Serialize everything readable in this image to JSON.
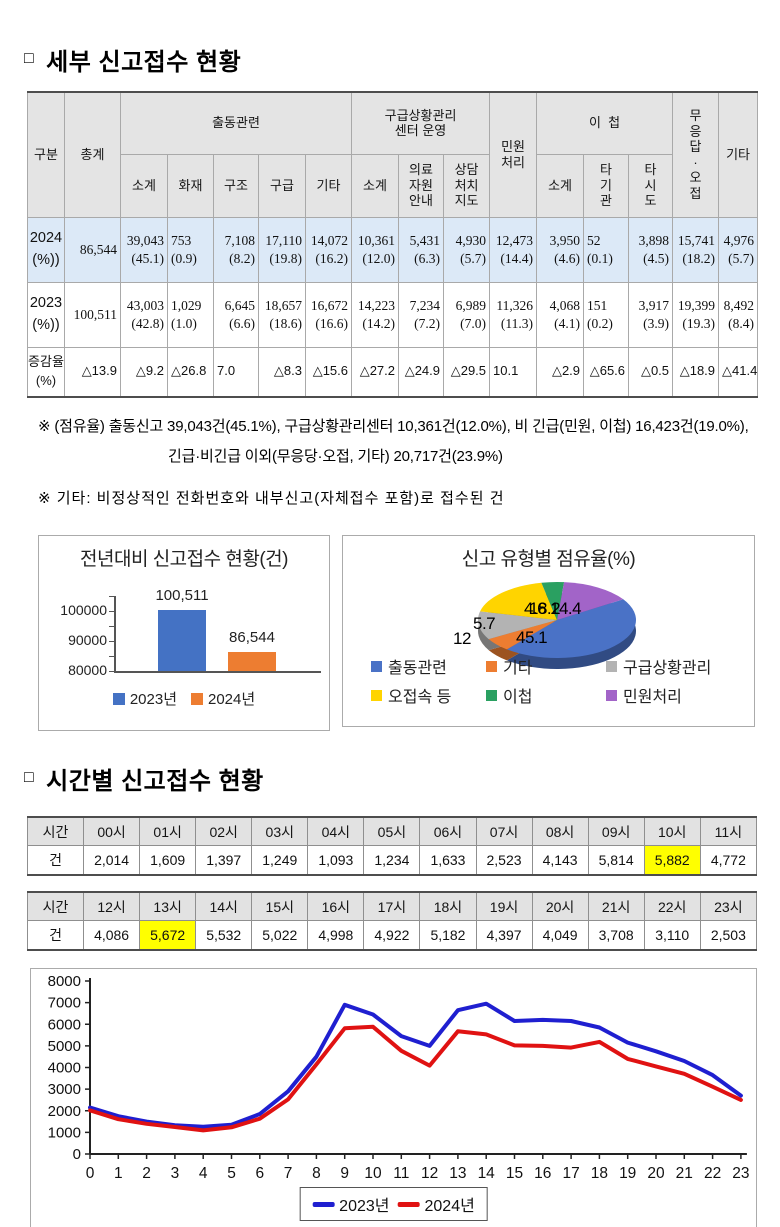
{
  "section1": {
    "bullet": "□",
    "title": "세부 신고접수 현황",
    "detail_table": {
      "h_gubun": "구분",
      "h_total": "총계",
      "h_dispatch": "출동관련",
      "h_dispatch_cols": [
        "소계",
        "화재",
        "구조",
        "구급",
        "기타"
      ],
      "h_ems": "구급상황관리\n센터 운영",
      "h_ems_cols": [
        "소계",
        "의료\n자원\n안내",
        "상담\n처치\n지도"
      ],
      "h_minwon": "민원\n처리",
      "h_transfer": "이  첩",
      "h_transfer_cols": [
        "소계",
        "타\n기\n관",
        "타\n시\n도"
      ],
      "h_noanswer": "무\n응\n답\n·\n오\n접",
      "h_etc": "기타",
      "rows": [
        {
          "label": "2024\n(%))",
          "style": "blue",
          "cells": [
            {
              "v": "86,544"
            },
            {
              "v": "39,043",
              "p": "(45.1)"
            },
            {
              "v": "753",
              "p": "(0.9)",
              "align": "left"
            },
            {
              "v": "7,108",
              "p": "(8.2)"
            },
            {
              "v": "17,110",
              "p": "(19.8)"
            },
            {
              "v": "14,072",
              "p": "(16.2)"
            },
            {
              "v": "10,361",
              "p": "(12.0)"
            },
            {
              "v": "5,431",
              "p": "(6.3)"
            },
            {
              "v": "4,930",
              "p": "(5.7)"
            },
            {
              "v": "12,473",
              "p": "(14.4)"
            },
            {
              "v": "3,950",
              "p": "(4.6)"
            },
            {
              "v": "52",
              "p": "(0.1)",
              "align": "left"
            },
            {
              "v": "3,898",
              "p": "(4.5)"
            },
            {
              "v": "15,741",
              "p": "(18.2)"
            },
            {
              "v": "4,976",
              "p": "(5.7)"
            }
          ]
        },
        {
          "label": "2023\n(%))",
          "style": "white",
          "cells": [
            {
              "v": "100,511"
            },
            {
              "v": "43,003",
              "p": "(42.8)"
            },
            {
              "v": "1,029",
              "p": "(1.0)",
              "align": "left"
            },
            {
              "v": "6,645",
              "p": "(6.6)"
            },
            {
              "v": "18,657",
              "p": "(18.6)"
            },
            {
              "v": "16,672",
              "p": "(16.6)"
            },
            {
              "v": "14,223",
              "p": "(14.2)"
            },
            {
              "v": "7,234",
              "p": "(7.2)"
            },
            {
              "v": "6,989",
              "p": "(7.0)"
            },
            {
              "v": "11,326",
              "p": "(11.3)"
            },
            {
              "v": "4,068",
              "p": "(4.1)"
            },
            {
              "v": "151",
              "p": "(0.2)",
              "align": "left"
            },
            {
              "v": "3,917",
              "p": "(3.9)"
            },
            {
              "v": "19,399",
              "p": "(19.3)"
            },
            {
              "v": "8,492",
              "p": "(8.4)"
            }
          ]
        },
        {
          "label": "증감율\n(%)",
          "style": "growth",
          "cells": [
            {
              "v": "△13.9"
            },
            {
              "v": "△9.2"
            },
            {
              "v": "△26.8",
              "align": "left"
            },
            {
              "v": "7.0",
              "align": "left"
            },
            {
              "v": "△8.3"
            },
            {
              "v": "△15.6"
            },
            {
              "v": "△27.2"
            },
            {
              "v": "△24.9"
            },
            {
              "v": "△29.5"
            },
            {
              "v": "10.1",
              "align": "left"
            },
            {
              "v": "△2.9"
            },
            {
              "v": "△65.6"
            },
            {
              "v": "△0.5"
            },
            {
              "v": "△18.9"
            },
            {
              "v": "△41.4"
            }
          ]
        }
      ]
    },
    "footnotes": {
      "note1_line1": "※ (점유율) 출동신고 39,043건(45.1%), 구급상황관리센터 10,361건(12.0%), 비 긴급(민원, 이첩) 16,423건(19.0%),",
      "note1_line2": "긴급·비긴급 이외(무응당·오접, 기타) 20,717건(23.9%)",
      "note2": "※ 기타: 비정상적인 전화번호와 내부신고(자체접수 포함)로 접수된 건"
    }
  },
  "section2": {
    "bullet": "□",
    "title": "시간별 신고접수 현황",
    "hourly": {
      "row_label_time": "시간",
      "row_label_count": "건",
      "tables": [
        {
          "hours": [
            "00시",
            "01시",
            "02시",
            "03시",
            "04시",
            "05시",
            "06시",
            "07시",
            "08시",
            "09시",
            "10시",
            "11시"
          ],
          "values": [
            "2,014",
            "1,609",
            "1,397",
            "1,249",
            "1,093",
            "1,234",
            "1,633",
            "2,523",
            "4,143",
            "5,814",
            "5,882",
            "4,772"
          ],
          "highlight": 10
        },
        {
          "hours": [
            "12시",
            "13시",
            "14시",
            "15시",
            "16시",
            "17시",
            "18시",
            "19시",
            "20시",
            "21시",
            "22시",
            "23시"
          ],
          "values": [
            "4,086",
            "5,672",
            "5,532",
            "5,022",
            "4,998",
            "4,922",
            "5,182",
            "4,397",
            "4,049",
            "3,708",
            "3,110",
            "2,503"
          ],
          "highlight": 1
        }
      ]
    }
  },
  "chart_data": [
    {
      "type": "bar",
      "title": "전년대비 신고접수 현황(건)",
      "categories": [
        "2023년",
        "2024년"
      ],
      "values": [
        100511,
        86544
      ],
      "value_labels": [
        "100,511",
        "86,544"
      ],
      "colors": [
        "#4472c4",
        "#ed7d31"
      ],
      "ylim": [
        80000,
        105000
      ],
      "yticks": [
        80000,
        90000,
        100000
      ],
      "legend": [
        "2023년",
        "2024년"
      ],
      "legend_position": "bottom"
    },
    {
      "type": "pie",
      "title": "신고 유형별 점유율(%)",
      "labels": [
        "출동관련",
        "기타",
        "구급상황관리",
        "오접속 등",
        "이첩",
        "민원처리"
      ],
      "values": [
        45.1,
        5.7,
        12,
        18.2,
        4.6,
        14.4
      ],
      "colors": [
        "#4a72c6",
        "#ed7d31",
        "#b3b3b3",
        "#ffd400",
        "#2aa061",
        "#a264c8"
      ],
      "start_angle_deg": 57,
      "visible_value_labels": [
        "45.1",
        "12",
        "5.7",
        "4.6",
        "18.2",
        "14.4"
      ],
      "legend_rows": [
        [
          "출동관련",
          "기타",
          "구급상황관리"
        ],
        [
          "오접속 등",
          "이첩",
          "민원처리"
        ]
      ]
    },
    {
      "type": "line",
      "x": [
        0,
        1,
        2,
        3,
        4,
        5,
        6,
        7,
        8,
        9,
        10,
        11,
        12,
        13,
        14,
        15,
        16,
        17,
        18,
        19,
        20,
        21,
        22,
        23
      ],
      "ylim": [
        0,
        8000
      ],
      "ytick_step": 1000,
      "series": [
        {
          "name": "2023년",
          "color": "#1f1fd0",
          "values": [
            2150,
            1750,
            1500,
            1330,
            1260,
            1350,
            1850,
            2900,
            4500,
            6900,
            6450,
            5450,
            5000,
            6650,
            6950,
            6150,
            6200,
            6150,
            5850,
            5150,
            4750,
            4300,
            3650,
            2700
          ]
        },
        {
          "name": "2024년",
          "color": "#e01212",
          "values": [
            2014,
            1609,
            1397,
            1249,
            1093,
            1234,
            1633,
            2523,
            4143,
            5814,
            5882,
            4772,
            4086,
            5672,
            5532,
            5022,
            4998,
            4922,
            5182,
            4397,
            4049,
            3708,
            3110,
            2503
          ]
        }
      ],
      "legend": [
        "2023년",
        "2024년"
      ]
    }
  ]
}
